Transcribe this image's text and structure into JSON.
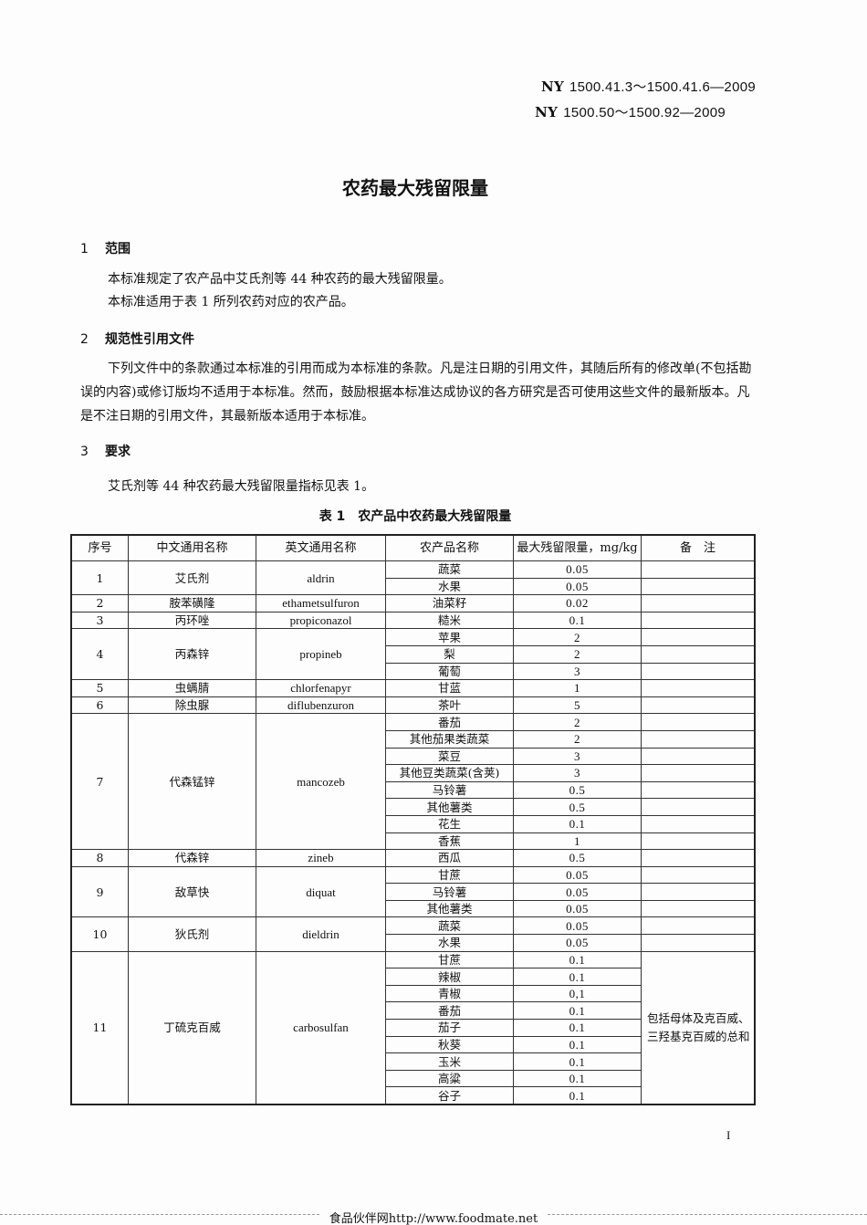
{
  "header": {
    "std1": {
      "prefix": "NY",
      "code": "1500.41.3～1500.41.6—2009"
    },
    "std2": {
      "prefix": "NY",
      "code": "1500.50～1500.92—2009"
    }
  },
  "title": "农药最大残留限量",
  "sections": [
    {
      "num": "1",
      "heading": "范围",
      "paragraphs": [
        "本标准规定了农产品中艾氏剂等 44 种农药的最大残留限量。",
        "本标准适用于表 1 所列农药对应的农产品。"
      ]
    },
    {
      "num": "2",
      "heading": "规范性引用文件",
      "paragraphs": [
        "下列文件中的条款通过本标准的引用而成为本标准的条款。凡是注日期的引用文件，其随后所有的修改单(不包括勘误的内容)或修订版均不适用于本标准。然而，鼓励根据本标准达成协议的各方研究是否可使用这些文件的最新版本。凡是不注日期的引用文件，其最新版本适用于本标准。"
      ]
    },
    {
      "num": "3",
      "heading": "要求",
      "paragraphs": [
        "艾氏剂等 44 种农药最大残留限量指标见表 1。"
      ]
    }
  ],
  "table": {
    "caption": "表 1　农产品中农药最大残留限量",
    "headers": [
      "序号",
      "中文通用名称",
      "英文通用名称",
      "农产品名称",
      "最大残留限量，mg/kg",
      "备　注"
    ],
    "groups": [
      {
        "no": "1",
        "cn": "艾氏剂",
        "en": "aldrin",
        "items": [
          [
            "蔬菜",
            "0.05"
          ],
          [
            "水果",
            "0.05"
          ]
        ],
        "remark": ""
      },
      {
        "no": "2",
        "cn": "胺苯磺隆",
        "en": "ethametsulfuron",
        "items": [
          [
            "油菜籽",
            "0.02"
          ]
        ],
        "remark": ""
      },
      {
        "no": "3",
        "cn": "丙环唑",
        "en": "propiconazol",
        "items": [
          [
            "糙米",
            "0.1"
          ]
        ],
        "remark": ""
      },
      {
        "no": "4",
        "cn": "丙森锌",
        "en": "propineb",
        "items": [
          [
            "苹果",
            "2"
          ],
          [
            "梨",
            "2"
          ],
          [
            "葡萄",
            "3"
          ]
        ],
        "remark": ""
      },
      {
        "no": "5",
        "cn": "虫螨腈",
        "en": "chlorfenapyr",
        "items": [
          [
            "甘蓝",
            "1"
          ]
        ],
        "remark": ""
      },
      {
        "no": "6",
        "cn": "除虫脲",
        "en": "diflubenzuron",
        "items": [
          [
            "茶叶",
            "5"
          ]
        ],
        "remark": ""
      },
      {
        "no": "7",
        "cn": "代森锰锌",
        "en": "mancozeb",
        "items": [
          [
            "番茄",
            "2"
          ],
          [
            "其他茄果类蔬菜",
            "2"
          ],
          [
            "菜豆",
            "3"
          ],
          [
            "其他豆类蔬菜(含荚)",
            "3"
          ],
          [
            "马铃薯",
            "0.5"
          ],
          [
            "其他薯类",
            "0.5"
          ],
          [
            "花生",
            "0.1"
          ],
          [
            "香蕉",
            "1"
          ]
        ],
        "remark": ""
      },
      {
        "no": "8",
        "cn": "代森锌",
        "en": "zineb",
        "items": [
          [
            "西瓜",
            "0.5"
          ]
        ],
        "remark": ""
      },
      {
        "no": "9",
        "cn": "敌草快",
        "en": "diquat",
        "items": [
          [
            "甘蔗",
            "0.05"
          ],
          [
            "马铃薯",
            "0.05"
          ],
          [
            "其他薯类",
            "0.05"
          ]
        ],
        "remark": ""
      },
      {
        "no": "10",
        "cn": "狄氏剂",
        "en": "dieldrin",
        "items": [
          [
            "蔬菜",
            "0.05"
          ],
          [
            "水果",
            "0.05"
          ]
        ],
        "remark": ""
      },
      {
        "no": "11",
        "cn": "丁硫克百威",
        "en": "carbosulfan",
        "items": [
          [
            "甘蔗",
            "0.1"
          ],
          [
            "辣椒",
            "0.1"
          ],
          [
            "青椒",
            "0,1"
          ],
          [
            "番茄",
            "0.1"
          ],
          [
            "茄子",
            "0.1"
          ],
          [
            "秋葵",
            "0.1"
          ],
          [
            "玉米",
            "0.1"
          ],
          [
            "高粱",
            "0.1"
          ],
          [
            "谷子",
            "0.1"
          ]
        ],
        "remark": "包括母体及克百威、三羟基克百威的总和",
        "merged_remark": true
      }
    ]
  },
  "page_number": "I",
  "footer": "食品伙伴网http://www.foodmate.net"
}
